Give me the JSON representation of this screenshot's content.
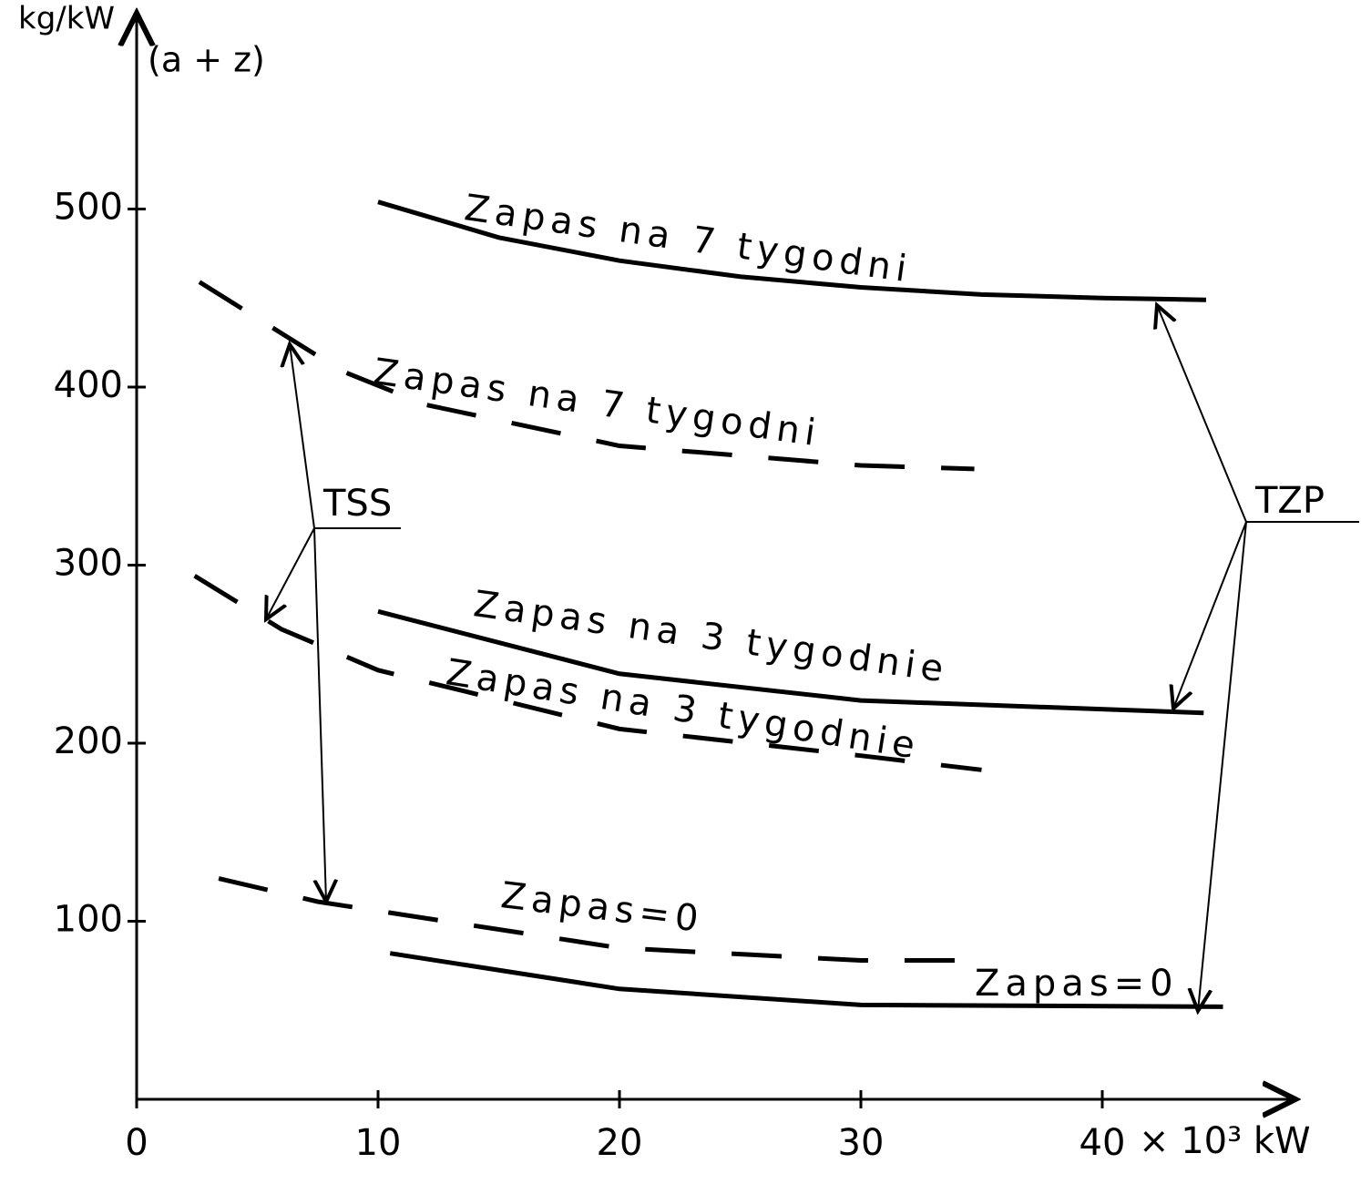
{
  "chart_data": {
    "type": "line",
    "y_label": "kg/kW",
    "y_sublabel": "(a + z)",
    "x_unit_label": "× 10³ kW",
    "xlim": [
      0,
      48
    ],
    "ylim": [
      0,
      610
    ],
    "xticks": [
      0,
      10,
      20,
      30,
      40
    ],
    "yticks": [
      100,
      200,
      300,
      400,
      500
    ],
    "color": "#000000",
    "series": [
      {
        "name": "Zapas na 7 tygodni",
        "dashed": false,
        "x": [
          10,
          15,
          20,
          25,
          30,
          35,
          40,
          44.3
        ],
        "values": [
          504,
          484,
          471,
          462,
          456,
          452,
          450,
          449
        ]
      },
      {
        "name": "Zapas na 7 tygodni",
        "dashed": true,
        "x": [
          2.6,
          8.5,
          12,
          20,
          30,
          34.7
        ],
        "values": [
          459,
          409,
          390,
          367,
          356,
          354
        ]
      },
      {
        "name": "Zapas na 3 tygodnie",
        "dashed": false,
        "x": [
          10,
          20,
          30,
          44.2
        ],
        "values": [
          274,
          239,
          224,
          217
        ]
      },
      {
        "name": "Zapas na 3 tygodnie",
        "dashed": true,
        "x": [
          2.4,
          6,
          10,
          20,
          30,
          35
        ],
        "values": [
          294,
          264,
          241,
          208,
          193,
          185
        ]
      },
      {
        "name": "Zapas=0",
        "dashed": true,
        "x": [
          3.4,
          7.5,
          20,
          30,
          34.7
        ],
        "values": [
          124,
          111,
          85,
          78,
          78
        ]
      },
      {
        "name": "Zapas=0",
        "dashed": false,
        "x": [
          10.5,
          20,
          30,
          45
        ],
        "values": [
          82,
          62,
          53,
          52
        ]
      }
    ],
    "annotations": [
      "TSS",
      "TZP"
    ]
  }
}
